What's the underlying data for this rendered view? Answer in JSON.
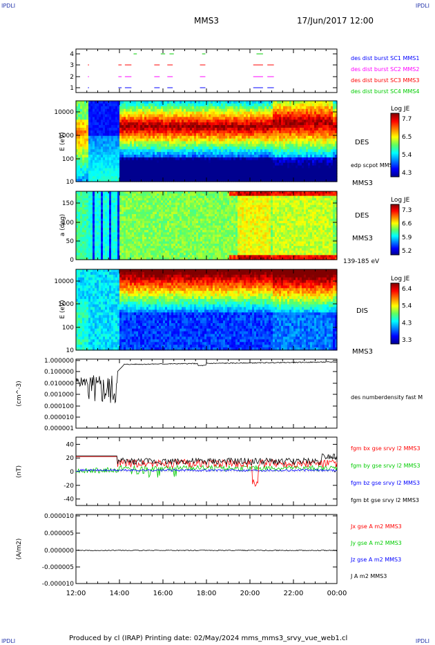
{
  "corners": {
    "tl": "IPDLI",
    "tr": "IPDLI",
    "bl": "IPDLI",
    "br": "IPDLI"
  },
  "header": {
    "spacecraft": "MMS3",
    "datetime": "17/Jun/2017 12:00"
  },
  "footer": "Produced by cl (IRAP)    Printing date: 02/May/2024    mms_mms3_srvy_vue_web1.cl",
  "chart_data": [
    {
      "type": "timeline",
      "yticks": [
        "1",
        "2",
        "3",
        "4"
      ],
      "labels": [
        {
          "text": "des dist burst SC1 MMS1",
          "color": "#0000ff"
        },
        {
          "text": "des dist burst SC2 MMS2",
          "color": "#ff00ff"
        },
        {
          "text": "des dist burst SC3 MMS3",
          "color": "#ff0000"
        },
        {
          "text": "des dist burst SC4 MMS4",
          "color": "#00cc00"
        }
      ],
      "intervals": [
        [
          12.55,
          12.6
        ],
        [
          13.95,
          14.1
        ],
        [
          14.25,
          14.55
        ],
        [
          15.6,
          15.85
        ],
        [
          16.2,
          16.45
        ],
        [
          17.7,
          17.95
        ],
        [
          20.15,
          20.6
        ],
        [
          20.8,
          21.1
        ]
      ]
    },
    {
      "type": "heatmap",
      "ylabel": "E (eV)",
      "yticks": [
        "10",
        "100",
        "1000",
        "10000"
      ],
      "label": "DES",
      "label2": "MMS3",
      "side_note": "edp scpot MMS3",
      "colorbar": {
        "title": "Log JE",
        "ticks": [
          "7.7",
          "6.5",
          "5.4",
          "4.3"
        ]
      }
    },
    {
      "type": "heatmap",
      "ylabel": "a (deg)",
      "yticks": [
        "0",
        "50",
        "100",
        "150"
      ],
      "label": "DES",
      "label2": "MMS3",
      "side_note": "139-185 eV",
      "colorbar": {
        "title": "Log JE",
        "ticks": [
          "7.3",
          "6.6",
          "5.9",
          "5.2"
        ]
      }
    },
    {
      "type": "heatmap",
      "ylabel": "E (eV)",
      "yticks": [
        "10",
        "100",
        "1000",
        "10000"
      ],
      "label": "DIS",
      "label2": "MMS3",
      "colorbar": {
        "title": "Log JE",
        "ticks": [
          "6.4",
          "5.4",
          "4.3",
          "3.3"
        ]
      }
    },
    {
      "type": "line",
      "ylabel": "(cm^-3)",
      "yscale": "log",
      "yticks": [
        "0.000001",
        "0.000010",
        "0.000100",
        "0.001000",
        "0.010000",
        "0.100000",
        "1.000000"
      ],
      "series": [
        {
          "name": "des numberdensity fast M",
          "color": "#000000"
        }
      ]
    },
    {
      "type": "line",
      "ylabel": "(nT)",
      "ylim": [
        -50,
        50
      ],
      "yticks": [
        "-40",
        "-20",
        "0",
        "20",
        "40"
      ],
      "series": [
        {
          "name": "fgm bx gse srvy l2 MMS3",
          "color": "#ff0000"
        },
        {
          "name": "fgm by gse srvy l2 MMS3",
          "color": "#00cc00"
        },
        {
          "name": "fgm bz gse srvy l2 MMS3",
          "color": "#0000ff"
        },
        {
          "name": "fgm bt gse srvy l2 MMS3",
          "color": "#000000"
        }
      ]
    },
    {
      "type": "line",
      "ylabel": "(A/m2)",
      "ylim": [
        -1e-05,
        1e-05
      ],
      "yticks": [
        "-0.000010",
        "-0.000005",
        "0.000000",
        "0.000005",
        "0.000010"
      ],
      "series": [
        {
          "name": "Jx gse A m2 MMS3",
          "color": "#ff0000"
        },
        {
          "name": "Jy gse A m2 MMS3",
          "color": "#00cc00"
        },
        {
          "name": "Jz gse A m2 MMS3",
          "color": "#0000ff"
        },
        {
          "name": "J A m2 MMS3",
          "color": "#000000"
        }
      ]
    }
  ],
  "xaxis": {
    "ticks": [
      "12:00",
      "14:00",
      "16:00",
      "18:00",
      "20:00",
      "22:00",
      "00:00"
    ]
  }
}
